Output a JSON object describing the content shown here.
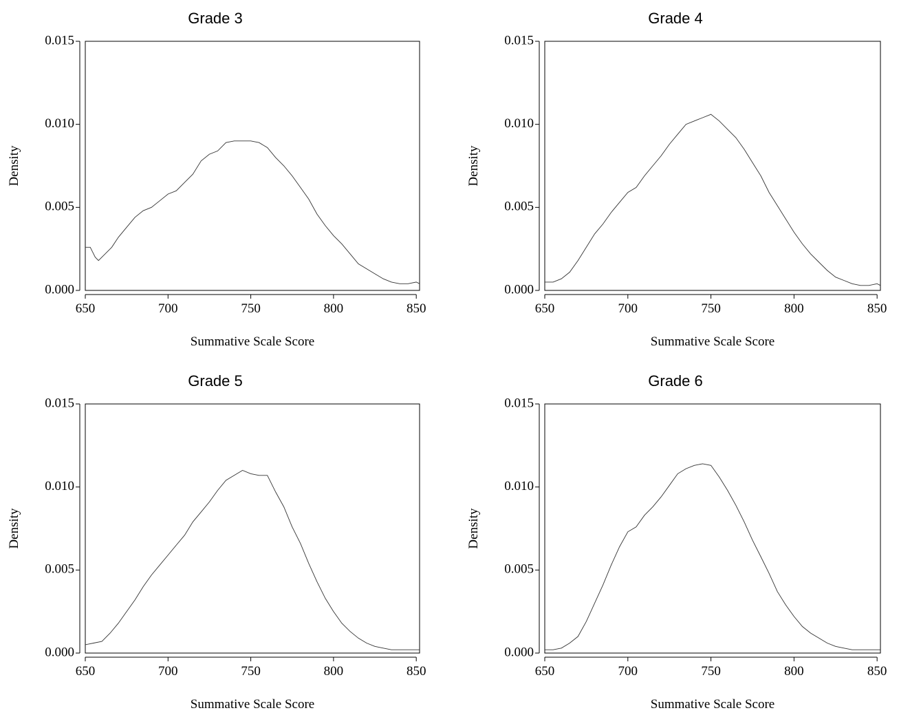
{
  "chart_data": [
    {
      "type": "line",
      "title": "Grade 3",
      "xlabel": "Summative Scale Score",
      "ylabel": "Density",
      "xlim": [
        650,
        852
      ],
      "ylim": [
        0,
        0.015
      ],
      "xticks": [
        650,
        700,
        750,
        800,
        850
      ],
      "yticks": [
        "0.000",
        "0.005",
        "0.010",
        "0.015"
      ],
      "grid": false,
      "legend": "none",
      "series": [
        {
          "x": [
            650,
            653,
            656,
            658,
            662,
            666,
            670,
            675,
            680,
            685,
            690,
            695,
            700,
            705,
            710,
            715,
            720,
            725,
            730,
            735,
            740,
            745,
            750,
            755,
            760,
            765,
            770,
            775,
            780,
            785,
            790,
            795,
            800,
            805,
            810,
            815,
            820,
            825,
            830,
            835,
            840,
            845,
            850,
            852
          ],
          "y": [
            0.0026,
            0.0026,
            0.002,
            0.0018,
            0.0022,
            0.0026,
            0.0032,
            0.0038,
            0.0044,
            0.0048,
            0.005,
            0.0054,
            0.0058,
            0.006,
            0.0065,
            0.007,
            0.0078,
            0.0082,
            0.0084,
            0.0089,
            0.009,
            0.009,
            0.009,
            0.0089,
            0.0086,
            0.008,
            0.0075,
            0.0069,
            0.0062,
            0.0055,
            0.0046,
            0.0039,
            0.0033,
            0.0028,
            0.0022,
            0.0016,
            0.0013,
            0.001,
            0.0007,
            0.0005,
            0.0004,
            0.0004,
            0.0005,
            0.0004
          ]
        }
      ]
    },
    {
      "type": "line",
      "title": "Grade 4",
      "xlabel": "Summative Scale Score",
      "ylabel": "Density",
      "xlim": [
        650,
        852
      ],
      "ylim": [
        0,
        0.015
      ],
      "xticks": [
        650,
        700,
        750,
        800,
        850
      ],
      "yticks": [
        "0.000",
        "0.005",
        "0.010",
        "0.015"
      ],
      "grid": false,
      "legend": "none",
      "series": [
        {
          "x": [
            650,
            655,
            660,
            665,
            670,
            675,
            680,
            685,
            690,
            695,
            700,
            705,
            710,
            715,
            720,
            725,
            730,
            735,
            740,
            745,
            750,
            755,
            760,
            765,
            770,
            775,
            780,
            785,
            790,
            795,
            800,
            805,
            810,
            815,
            820,
            825,
            830,
            835,
            840,
            845,
            850,
            852
          ],
          "y": [
            0.0005,
            0.0005,
            0.0007,
            0.0011,
            0.0018,
            0.0026,
            0.0034,
            0.004,
            0.0047,
            0.0053,
            0.0059,
            0.0062,
            0.0069,
            0.0075,
            0.0081,
            0.0088,
            0.0094,
            0.01,
            0.0102,
            0.0104,
            0.0106,
            0.0102,
            0.0097,
            0.0092,
            0.0085,
            0.0077,
            0.0069,
            0.0059,
            0.0051,
            0.0043,
            0.0035,
            0.0028,
            0.0022,
            0.0017,
            0.0012,
            0.0008,
            0.0006,
            0.0004,
            0.0003,
            0.0003,
            0.0004,
            0.0003
          ]
        }
      ]
    },
    {
      "type": "line",
      "title": "Grade 5",
      "xlabel": "Summative Scale Score",
      "ylabel": "Density",
      "xlim": [
        650,
        852
      ],
      "ylim": [
        0,
        0.015
      ],
      "xticks": [
        650,
        700,
        750,
        800,
        850
      ],
      "yticks": [
        "0.000",
        "0.005",
        "0.010",
        "0.015"
      ],
      "grid": false,
      "legend": "none",
      "series": [
        {
          "x": [
            650,
            655,
            660,
            665,
            670,
            675,
            680,
            685,
            690,
            695,
            700,
            705,
            710,
            715,
            720,
            725,
            730,
            735,
            740,
            745,
            750,
            755,
            760,
            765,
            770,
            775,
            780,
            785,
            790,
            795,
            800,
            805,
            810,
            815,
            820,
            825,
            830,
            835,
            840,
            845,
            850,
            852
          ],
          "y": [
            0.0005,
            0.0006,
            0.0007,
            0.0012,
            0.0018,
            0.0025,
            0.0032,
            0.004,
            0.0047,
            0.0053,
            0.0059,
            0.0065,
            0.0071,
            0.0079,
            0.0085,
            0.0091,
            0.0098,
            0.0104,
            0.0107,
            0.011,
            0.0108,
            0.0107,
            0.0107,
            0.0097,
            0.0088,
            0.0076,
            0.0066,
            0.0054,
            0.0043,
            0.0033,
            0.0025,
            0.0018,
            0.0013,
            0.0009,
            0.0006,
            0.0004,
            0.0003,
            0.0002,
            0.0002,
            0.0002,
            0.0002,
            0.0002
          ]
        }
      ]
    },
    {
      "type": "line",
      "title": "Grade 6",
      "xlabel": "Summative Scale Score",
      "ylabel": "Density",
      "xlim": [
        650,
        852
      ],
      "ylim": [
        0,
        0.015
      ],
      "xticks": [
        650,
        700,
        750,
        800,
        850
      ],
      "yticks": [
        "0.000",
        "0.005",
        "0.010",
        "0.015"
      ],
      "grid": false,
      "legend": "none",
      "series": [
        {
          "x": [
            650,
            655,
            660,
            665,
            670,
            675,
            680,
            685,
            690,
            695,
            700,
            705,
            710,
            715,
            720,
            725,
            730,
            735,
            740,
            745,
            750,
            755,
            760,
            765,
            770,
            775,
            780,
            785,
            790,
            795,
            800,
            805,
            810,
            815,
            820,
            825,
            830,
            835,
            840,
            845,
            850,
            852
          ],
          "y": [
            0.0002,
            0.0002,
            0.0003,
            0.0006,
            0.001,
            0.0019,
            0.003,
            0.0041,
            0.0053,
            0.0064,
            0.0073,
            0.0076,
            0.0083,
            0.0088,
            0.0094,
            0.0101,
            0.0108,
            0.0111,
            0.0113,
            0.0114,
            0.0113,
            0.0106,
            0.0098,
            0.0089,
            0.0079,
            0.0068,
            0.0058,
            0.0048,
            0.0037,
            0.0029,
            0.0022,
            0.0016,
            0.0012,
            0.0009,
            0.0006,
            0.0004,
            0.0003,
            0.0002,
            0.0002,
            0.0002,
            0.0002,
            0.0002
          ]
        }
      ]
    }
  ]
}
